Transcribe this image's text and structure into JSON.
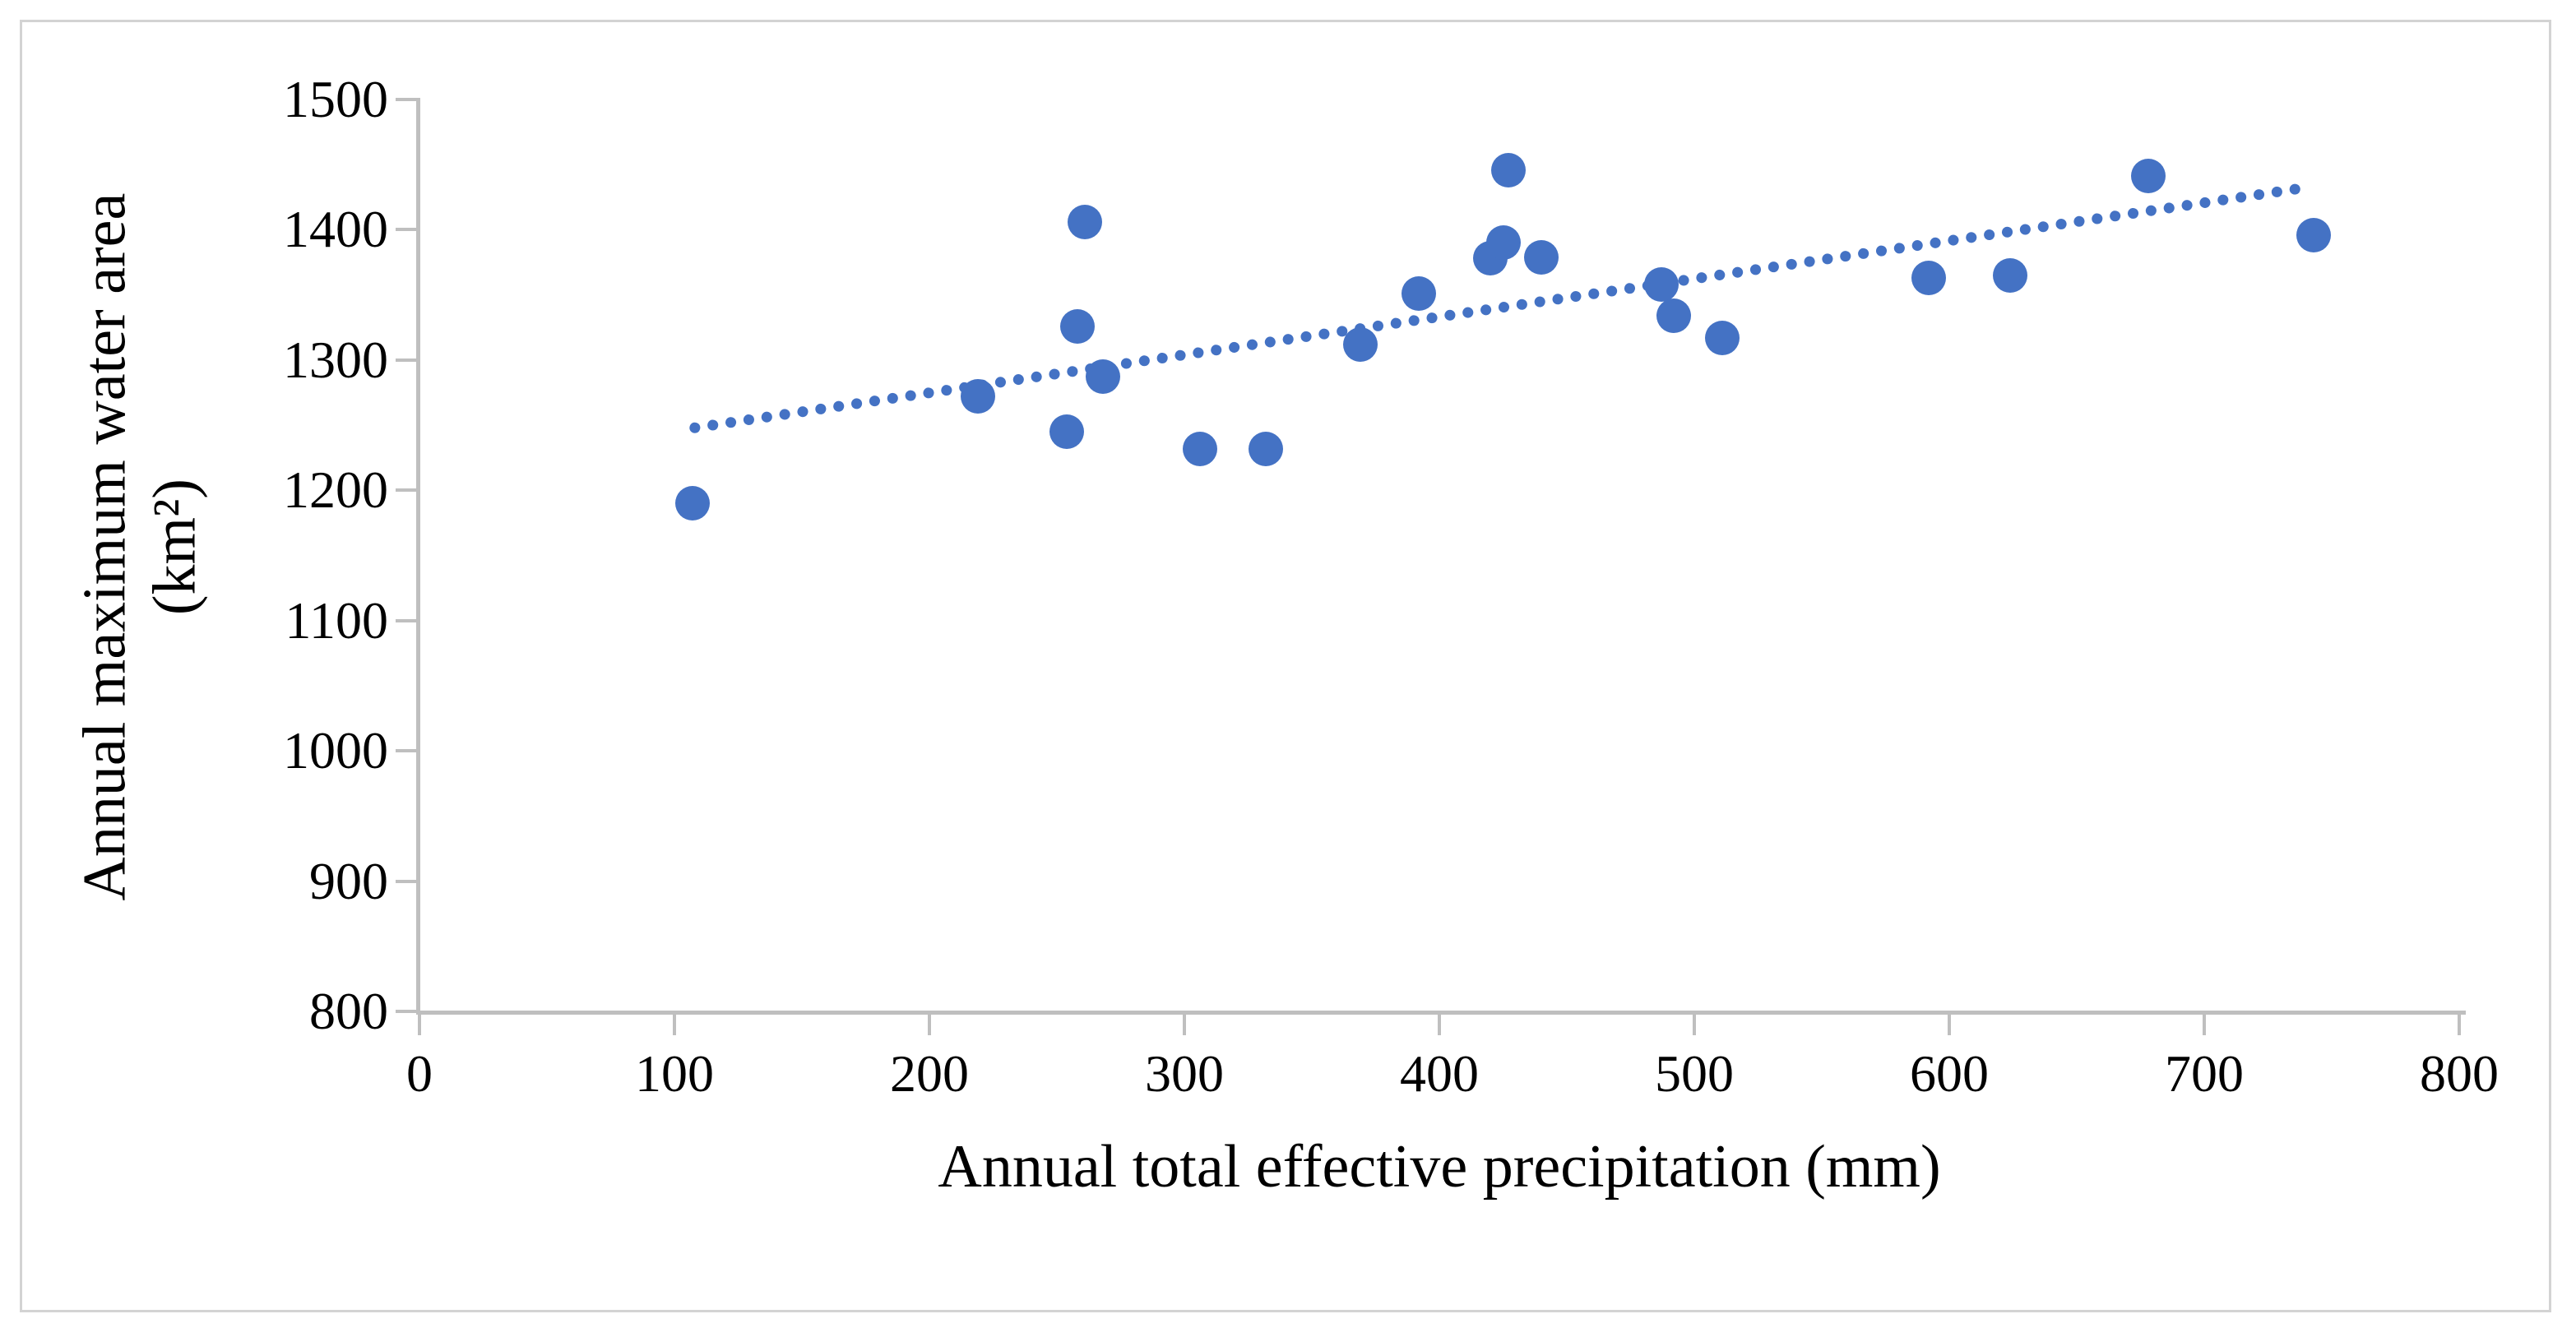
{
  "figure": {
    "background": "#ffffff",
    "border_color": "#d3d3d3"
  },
  "chart_data": {
    "type": "scatter",
    "title": "",
    "xlabel": "Annual total effective precipitation (mm)",
    "ylabel_line1": "Annual maximum water area",
    "ylabel_line2": "(km²)",
    "xlim": [
      0,
      800
    ],
    "ylim": [
      800,
      1500
    ],
    "x_ticks": [
      0,
      100,
      200,
      300,
      400,
      500,
      600,
      700,
      800
    ],
    "y_ticks": [
      800,
      900,
      1000,
      1100,
      1200,
      1300,
      1400,
      1500
    ],
    "grid": false,
    "legend_position": "none",
    "point_color": "#4472c4",
    "axis_color": "#bfbfbf",
    "text_color": "#000000",
    "points": [
      {
        "x": 107,
        "y": 1190
      },
      {
        "x": 219,
        "y": 1272
      },
      {
        "x": 254,
        "y": 1245
      },
      {
        "x": 258,
        "y": 1326
      },
      {
        "x": 261,
        "y": 1406
      },
      {
        "x": 268,
        "y": 1287
      },
      {
        "x": 306,
        "y": 1232
      },
      {
        "x": 332,
        "y": 1232
      },
      {
        "x": 369,
        "y": 1312
      },
      {
        "x": 392,
        "y": 1351
      },
      {
        "x": 420,
        "y": 1378
      },
      {
        "x": 425,
        "y": 1390
      },
      {
        "x": 427,
        "y": 1446
      },
      {
        "x": 440,
        "y": 1379
      },
      {
        "x": 487,
        "y": 1358
      },
      {
        "x": 492,
        "y": 1334
      },
      {
        "x": 511,
        "y": 1317
      },
      {
        "x": 592,
        "y": 1363
      },
      {
        "x": 624,
        "y": 1365
      },
      {
        "x": 678,
        "y": 1441
      },
      {
        "x": 743,
        "y": 1396
      }
    ],
    "trendline": {
      "style": "dotted",
      "color": "#4472c4",
      "x1": 108,
      "y1": 1248,
      "x2": 742,
      "y2": 1433
    }
  }
}
